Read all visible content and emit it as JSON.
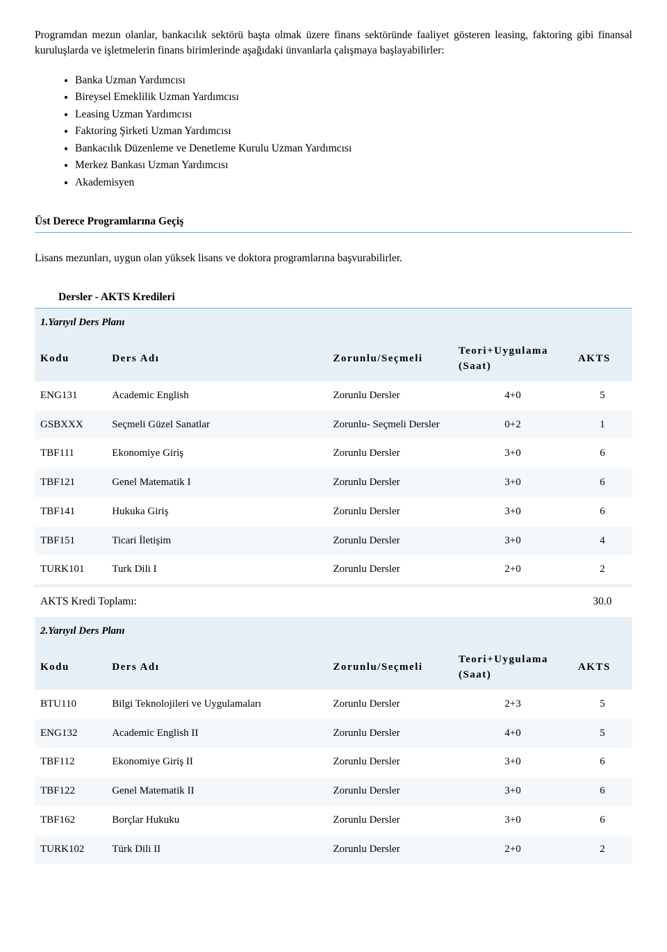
{
  "intro": "Programdan mezun olanlar, bankacılık sektörü başta olmak üzere finans sektöründe faaliyet gösteren leasing, faktoring gibi finansal kuruluşlarda ve işletmelerin finans birimlerinde aşağıdaki ünvanlarla çalışmaya başlayabilirler:",
  "bullets": [
    "Banka Uzman Yardımcısı",
    "Bireysel Emeklilik Uzman Yardımcısı",
    "Leasing Uzman Yardımcısı",
    "Faktoring Şirketi Uzman Yardımcısı",
    "Bankacılık Düzenleme ve Denetleme Kurulu Uzman Yardımcısı",
    "Merkez Bankası Uzman Yardımcısı",
    "Akademisyen"
  ],
  "section1_heading": "Üst Derece Programlarına Geçiş",
  "section1_text": "Lisans mezunları, uygun olan yüksek lisans ve doktora programlarına başvurabilirler.",
  "section2_heading": "Dersler - AKTS Kredileri",
  "table_colors": {
    "light1": "#e7f0f7",
    "light2": "#f4f8fb",
    "white": "#ffffff"
  },
  "header": {
    "kodu": "Kodu",
    "ders": "Ders Adı",
    "zorunlu": "Zorunlu/Seçmeli",
    "teori_l1": "Teori+Uygulama",
    "teori_l2": "(Saat)",
    "akts": "AKTS"
  },
  "plan1": {
    "title": "1.Yarıyıl Ders Planı",
    "rows": [
      {
        "kodu": "ENG131",
        "ders": "Academic English",
        "zorunlu": "Zorunlu Dersler",
        "teori": "4+0",
        "akts": "5"
      },
      {
        "kodu": "GSBXXX",
        "ders": "Seçmeli Güzel Sanatlar",
        "zorunlu": "Zorunlu- Seçmeli Dersler",
        "teori": "0+2",
        "akts": "1"
      },
      {
        "kodu": "TBF111",
        "ders": "Ekonomiye Giriş",
        "zorunlu": "Zorunlu Dersler",
        "teori": "3+0",
        "akts": "6"
      },
      {
        "kodu": "TBF121",
        "ders": "Genel Matematik I",
        "zorunlu": "Zorunlu Dersler",
        "teori": "3+0",
        "akts": "6"
      },
      {
        "kodu": "TBF141",
        "ders": "Hukuka Giriş",
        "zorunlu": "Zorunlu Dersler",
        "teori": "3+0",
        "akts": "6"
      },
      {
        "kodu": "TBF151",
        "ders": "Ticari İletişim",
        "zorunlu": "Zorunlu Dersler",
        "teori": "3+0",
        "akts": "4"
      },
      {
        "kodu": "TURK101",
        "ders": "Turk Dili I",
        "zorunlu": "Zorunlu Dersler",
        "teori": "2+0",
        "akts": "2"
      }
    ],
    "total_label": "AKTS Kredi Toplamı:",
    "total_value": "30.0"
  },
  "plan2": {
    "title": "2.Yarıyıl Ders Planı",
    "rows": [
      {
        "kodu": "BTU110",
        "ders": "Bilgi Teknolojileri ve Uygulamaları",
        "zorunlu": "Zorunlu Dersler",
        "teori": "2+3",
        "akts": "5"
      },
      {
        "kodu": "ENG132",
        "ders": "Academic English II",
        "zorunlu": "Zorunlu Dersler",
        "teori": "4+0",
        "akts": "5"
      },
      {
        "kodu": "TBF112",
        "ders": "Ekonomiye Giriş II",
        "zorunlu": "Zorunlu Dersler",
        "teori": "3+0",
        "akts": "6"
      },
      {
        "kodu": "TBF122",
        "ders": "Genel Matematik II",
        "zorunlu": "Zorunlu Dersler",
        "teori": "3+0",
        "akts": "6"
      },
      {
        "kodu": "TBF162",
        "ders": "Borçlar Hukuku",
        "zorunlu": "Zorunlu Dersler",
        "teori": "3+0",
        "akts": "6"
      },
      {
        "kodu": "TURK102",
        "ders": "Türk Dili II",
        "zorunlu": "Zorunlu Dersler",
        "teori": "2+0",
        "akts": "2"
      }
    ]
  }
}
